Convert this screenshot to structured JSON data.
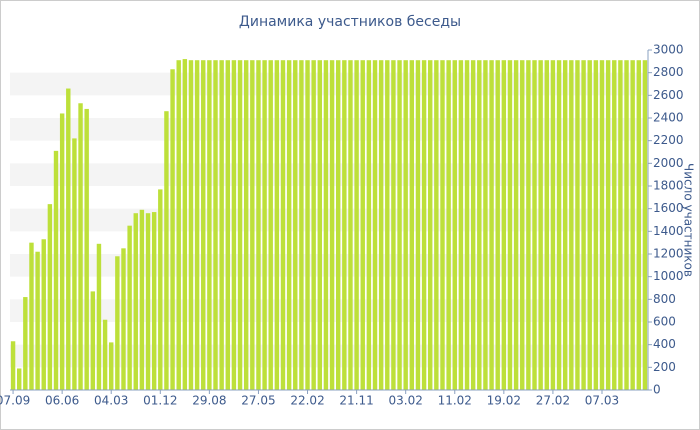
{
  "chart_data": {
    "type": "bar",
    "title": "Динамика участников беседы",
    "y_label": "Число участников",
    "categories": [
      "07.09",
      null,
      null,
      null,
      null,
      null,
      null,
      null,
      "06.06",
      null,
      null,
      null,
      null,
      null,
      null,
      null,
      "04.03",
      null,
      null,
      null,
      null,
      null,
      null,
      null,
      "01.12",
      null,
      null,
      null,
      null,
      null,
      null,
      null,
      "29.08",
      null,
      null,
      null,
      null,
      null,
      null,
      null,
      "27.05",
      null,
      null,
      null,
      null,
      null,
      null,
      null,
      "22.02",
      null,
      null,
      null,
      null,
      null,
      null,
      null,
      "21.11",
      null,
      null,
      null,
      null,
      null,
      null,
      null,
      "03.02",
      null,
      null,
      null,
      null,
      null,
      null,
      null,
      "11.02",
      null,
      null,
      null,
      null,
      null,
      null,
      null,
      "19.02",
      null,
      null,
      null,
      null,
      null,
      null,
      null,
      "27.02",
      null,
      null,
      null,
      null,
      null,
      null,
      null,
      "07.03",
      null,
      null,
      null,
      null,
      null,
      null,
      null
    ],
    "values": [
      430,
      190,
      820,
      1300,
      1220,
      1330,
      1640,
      2110,
      2440,
      2660,
      2220,
      2530,
      2480,
      870,
      1290,
      620,
      420,
      1180,
      1250,
      1450,
      1560,
      1590,
      1560,
      1570,
      1770,
      2460,
      2830,
      2910,
      2920,
      2910,
      2910,
      2910,
      2910,
      2910,
      2910,
      2910,
      2910,
      2910,
      2910,
      2910,
      2910,
      2910,
      2910,
      2910,
      2910,
      2910,
      2910,
      2910,
      2910,
      2910,
      2910,
      2910,
      2910,
      2910,
      2910,
      2910,
      2910,
      2910,
      2910,
      2910,
      2910,
      2910,
      2910,
      2910,
      2910,
      2910,
      2910,
      2910,
      2910,
      2910,
      2910,
      2910,
      2910,
      2910,
      2910,
      2910,
      2910,
      2910,
      2910,
      2910,
      2910,
      2910,
      2910,
      2910,
      2910,
      2910,
      2910,
      2910,
      2910,
      2910,
      2910,
      2910,
      2910,
      2910,
      2910,
      2910,
      2910,
      2910,
      2910,
      2910,
      2910,
      2910,
      2910,
      2910
    ],
    "color": "#bde03a",
    "ylim": [
      0,
      3000
    ],
    "yticks": [
      0,
      200,
      400,
      600,
      800,
      1000,
      1200,
      1400,
      1600,
      1800,
      2000,
      2200,
      2400,
      2600,
      2800,
      3000
    ],
    "stripes": true,
    "y_axis_side": "right"
  }
}
